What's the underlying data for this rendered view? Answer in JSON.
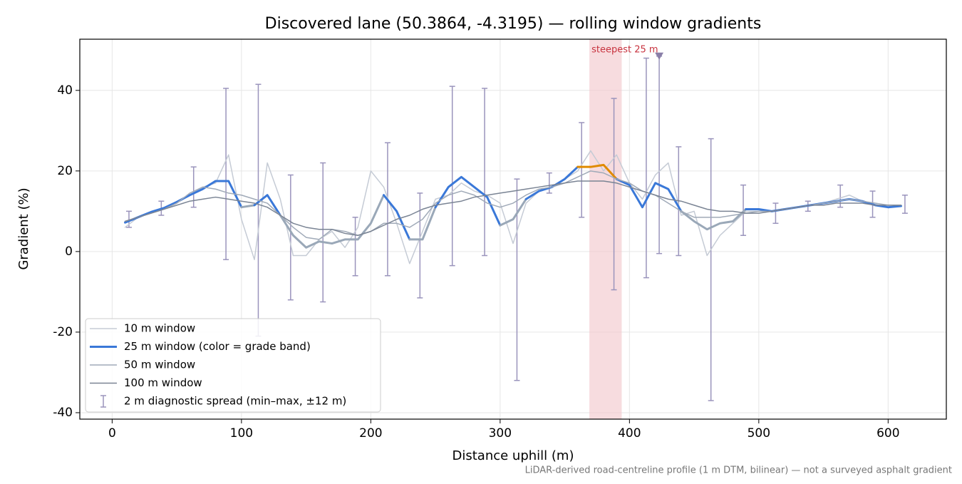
{
  "chart_data": {
    "type": "line",
    "title": "Discovered lane (50.3864, -4.3195) — rolling window gradients",
    "x_label": "Distance uphill (m)",
    "y_label": "Gradient (%)",
    "note": "LiDAR-derived road-centreline profile (1 m DTM, bilinear) — not a surveyed asphalt gradient",
    "xlim": [
      -25,
      645
    ],
    "ylim": [
      -41.6,
      52.7
    ],
    "xticks": [
      0,
      100,
      200,
      300,
      400,
      500,
      600
    ],
    "yticks": [
      -40,
      -20,
      0,
      20,
      40
    ],
    "grid": true,
    "legend": "lower left",
    "x": [
      10,
      20,
      30,
      40,
      50,
      60,
      70,
      80,
      90,
      100,
      110,
      120,
      130,
      140,
      150,
      160,
      170,
      180,
      190,
      200,
      210,
      220,
      230,
      240,
      250,
      260,
      270,
      280,
      290,
      300,
      310,
      320,
      330,
      340,
      350,
      360,
      370,
      380,
      390,
      400,
      410,
      420,
      430,
      440,
      450,
      460,
      470,
      480,
      490,
      500,
      510,
      520,
      530,
      540,
      550,
      560,
      570,
      580,
      590,
      600,
      610
    ],
    "series": [
      {
        "name": "10 m window",
        "color": "#c5cbd5",
        "width": 1.5,
        "values": [
          6,
          8.5,
          9.5,
          10.5,
          12,
          14,
          16,
          17,
          24,
          8,
          -2,
          22,
          13,
          -1,
          -1,
          3,
          5,
          1,
          6,
          20,
          16,
          7,
          -3,
          5,
          13,
          14,
          17,
          15,
          14,
          12,
          2,
          12,
          15,
          16,
          18,
          20,
          25,
          20,
          24,
          17,
          13,
          19,
          22,
          9,
          10,
          -1,
          4,
          7,
          10,
          10,
          10,
          10.5,
          11,
          11.5,
          12,
          13,
          14,
          12.5,
          11.5,
          11,
          11.5
        ]
      },
      {
        "name": "25 m window (color = grade band)",
        "color": "#3a78d8",
        "width": 3,
        "values": [
          7.2,
          8.5,
          9.8,
          10.8,
          12.3,
          14,
          15.5,
          17.5,
          17.5,
          11,
          11.5,
          14,
          9,
          4,
          1,
          2.5,
          2,
          3,
          3,
          7,
          14,
          10,
          3,
          3,
          11,
          16,
          18.5,
          16,
          13.5,
          6.5,
          8,
          13,
          15,
          16,
          18,
          21,
          21,
          21.5,
          18,
          16.5,
          11,
          17,
          15.5,
          10,
          7.5,
          5.5,
          7,
          7.5,
          10.5,
          10.5,
          10,
          10.5,
          11,
          11.5,
          12,
          12.5,
          13,
          12.5,
          11.5,
          11,
          11.3
        ],
        "colors": [
          "#3a78d8",
          "#3a78d8",
          "#3a78d8",
          "#3a78d8",
          "#3a78d8",
          "#3a78d8",
          "#3a78d8",
          "#3a78d8",
          "#3a78d8",
          "#9aa8b8",
          "#3a78d8",
          "#3a78d8",
          "#9aa8b8",
          "#9aa8b8",
          "#9aa8b8",
          "#9aa8b8",
          "#9aa8b8",
          "#9aa8b8",
          "#9aa8b8",
          "#9aa8b8",
          "#3a78d8",
          "#3a78d8",
          "#9aa8b8",
          "#9aa8b8",
          "#3a78d8",
          "#3a78d8",
          "#3a78d8",
          "#3a78d8",
          "#3a78d8",
          "#9aa8b8",
          "#9aa8b8",
          "#3a78d8",
          "#3a78d8",
          "#3a78d8",
          "#3a78d8",
          "#e08a00",
          "#e08a00",
          "#e08a00",
          "#3a78d8",
          "#3a78d8",
          "#3a78d8",
          "#3a78d8",
          "#3a78d8",
          "#9aa8b8",
          "#9aa8b8",
          "#9aa8b8",
          "#9aa8b8",
          "#9aa8b8",
          "#3a78d8",
          "#3a78d8",
          "#3a78d8",
          "#3a78d8",
          "#3a78d8",
          "#3a78d8",
          "#3a78d8",
          "#3a78d8",
          "#3a78d8",
          "#3a78d8",
          "#3a78d8",
          "#3a78d8",
          "#3a78d8"
        ]
      },
      {
        "name": "50 m window",
        "color": "#a0aab8",
        "width": 1.5,
        "values": [
          7.5,
          8.5,
          9.5,
          10.5,
          12,
          14.5,
          16,
          15.5,
          14.5,
          14,
          13,
          12,
          9,
          6,
          3.5,
          3,
          5.5,
          5,
          4,
          5,
          7,
          7,
          6,
          8,
          12,
          14,
          15,
          14,
          12,
          11,
          12,
          14,
          15.5,
          16,
          17,
          18.5,
          20,
          19.5,
          18,
          17,
          15,
          14,
          12,
          10,
          8.5,
          8.5,
          8.5,
          9,
          9.5,
          10,
          10,
          10.5,
          11,
          11.5,
          12,
          12.5,
          13,
          12.5,
          12,
          11.5,
          11.5
        ]
      },
      {
        "name": "100 m window",
        "color": "#7a8494",
        "width": 1.5,
        "values": [
          7.5,
          8.5,
          9.5,
          10.5,
          11.5,
          12.5,
          13,
          13.5,
          13,
          12.5,
          12,
          11,
          9,
          7,
          6,
          5.5,
          5.5,
          4.5,
          4,
          5,
          6.5,
          8,
          9,
          10.5,
          11.5,
          12,
          12.5,
          13.5,
          14,
          14.5,
          15,
          15.5,
          16,
          16.5,
          17,
          17.5,
          17.5,
          17.5,
          17,
          16,
          15,
          14,
          13,
          12.5,
          11.5,
          10.5,
          10,
          10,
          9.5,
          9.5,
          10,
          10.5,
          11,
          11.5,
          11.5,
          12,
          12,
          12,
          11.5,
          11.5,
          11.5
        ]
      }
    ],
    "errorbars": {
      "name": "2 m diagnostic spread (min–max, ±12 m)",
      "color": "#9a94bc",
      "x": [
        13,
        38,
        63,
        88,
        113,
        138,
        163,
        188,
        213,
        238,
        263,
        288,
        313,
        338,
        363,
        388,
        413,
        423,
        438,
        463,
        488,
        513,
        538,
        563,
        588,
        613
      ],
      "low": [
        6,
        9,
        11,
        -2,
        -21,
        -12,
        -12.5,
        -6,
        -6,
        -11.5,
        -3.5,
        -1,
        -32,
        14.5,
        8.5,
        -9.5,
        -6.5,
        -0.5,
        -1,
        -37,
        4,
        7,
        10,
        11,
        8.5,
        9.5
      ],
      "high": [
        10,
        12.5,
        21,
        40.5,
        41.5,
        19,
        22,
        8.5,
        27,
        14.5,
        41,
        40.5,
        18,
        19.5,
        32,
        38,
        48,
        48.5,
        26,
        28,
        16.5,
        12,
        12.5,
        16.5,
        15,
        14
      ]
    },
    "highlight": {
      "xlim": [
        369,
        394
      ],
      "color": "#f2c4c9",
      "label": "steepest 25 m",
      "label_color": "#c8333f"
    },
    "marker": {
      "x": 423,
      "y": 48.5,
      "color": "#8a7fa8"
    }
  }
}
